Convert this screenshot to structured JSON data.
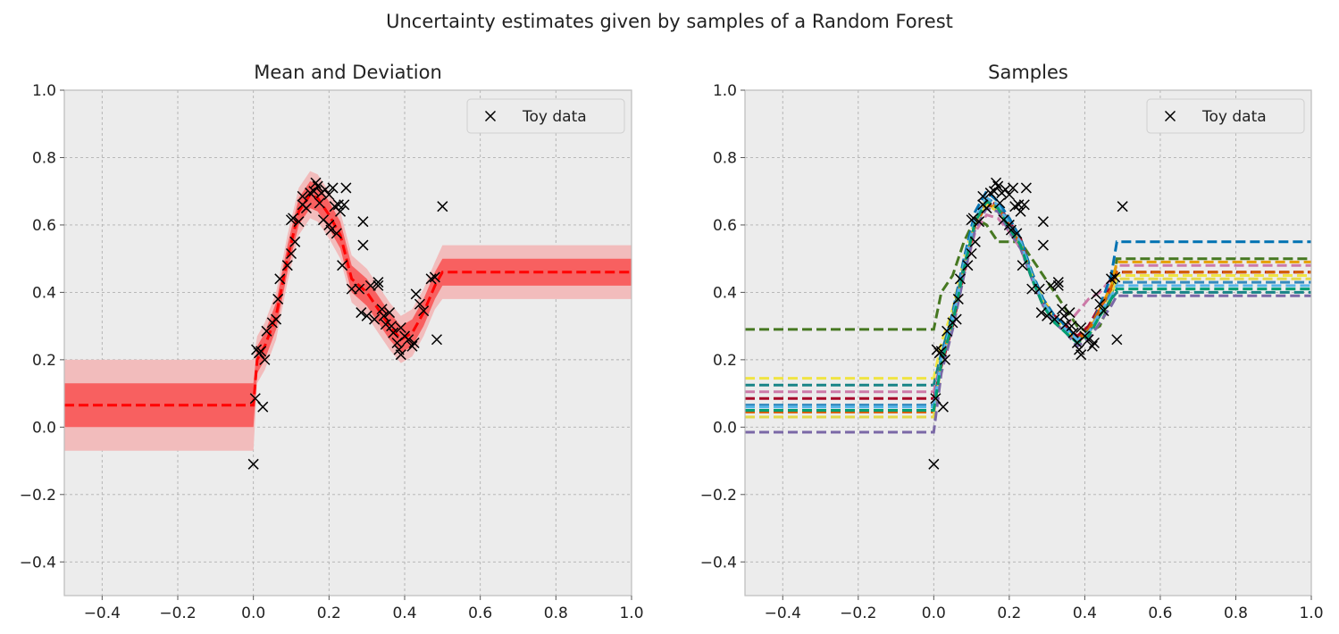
{
  "figure": {
    "suptitle": "Uncertainty estimates given by samples of a Random Forest"
  },
  "chart_data": [
    {
      "type": "line",
      "title": "Mean and Deviation",
      "xlabel": "",
      "ylabel": "",
      "xlim": [
        -0.5,
        1.0
      ],
      "ylim": [
        -0.5,
        1.0
      ],
      "xticks": [
        -0.4,
        -0.2,
        0.0,
        0.2,
        0.4,
        0.6,
        0.8,
        1.0
      ],
      "yticks": [
        -0.4,
        -0.2,
        0.0,
        0.2,
        0.4,
        0.6,
        0.8,
        1.0
      ],
      "xtick_labels": [
        "−0.4",
        "−0.2",
        "0.0",
        "0.2",
        "0.4",
        "0.6",
        "0.8",
        "1.0"
      ],
      "ytick_labels": [
        "−0.4",
        "−0.2",
        "0.0",
        "0.2",
        "0.4",
        "0.6",
        "0.8",
        "1.0"
      ],
      "grid": true,
      "legend": {
        "position": "upper-right",
        "entries": [
          "Toy data"
        ]
      },
      "mean": {
        "x": [
          -0.5,
          0.0,
          0.01,
          0.03,
          0.06,
          0.09,
          0.12,
          0.15,
          0.17,
          0.2,
          0.23,
          0.26,
          0.3,
          0.33,
          0.36,
          0.39,
          0.42,
          0.45,
          0.48,
          0.5,
          1.0
        ],
        "y": [
          0.065,
          0.065,
          0.2,
          0.24,
          0.33,
          0.5,
          0.64,
          0.69,
          0.68,
          0.63,
          0.57,
          0.44,
          0.4,
          0.35,
          0.3,
          0.26,
          0.28,
          0.34,
          0.42,
          0.46,
          0.46
        ]
      },
      "band_1sd": {
        "lower_offset": [
          0.065,
          0.065,
          0.04,
          0.04,
          0.04,
          0.04,
          0.04,
          0.04,
          0.04,
          0.04,
          0.04,
          0.04,
          0.04,
          0.04,
          0.04,
          0.04,
          0.04,
          0.04,
          0.04,
          0.04,
          0.04
        ],
        "color": "#f86060"
      },
      "band_2sd": {
        "lower_offset": [
          0.135,
          0.135,
          0.07,
          0.07,
          0.07,
          0.07,
          0.07,
          0.07,
          0.07,
          0.07,
          0.07,
          0.07,
          0.07,
          0.07,
          0.07,
          0.07,
          0.07,
          0.07,
          0.07,
          0.08,
          0.08
        ],
        "color": "#f2bcbc"
      },
      "toy_data": [
        [
          0.0,
          -0.11
        ],
        [
          0.005,
          0.085
        ],
        [
          0.008,
          0.23
        ],
        [
          0.015,
          0.22
        ],
        [
          0.02,
          0.225
        ],
        [
          0.025,
          0.06
        ],
        [
          0.03,
          0.2
        ],
        [
          0.035,
          0.285
        ],
        [
          0.05,
          0.31
        ],
        [
          0.06,
          0.32
        ],
        [
          0.065,
          0.38
        ],
        [
          0.07,
          0.44
        ],
        [
          0.09,
          0.48
        ],
        [
          0.1,
          0.515
        ],
        [
          0.1,
          0.615
        ],
        [
          0.105,
          0.62
        ],
        [
          0.11,
          0.55
        ],
        [
          0.12,
          0.61
        ],
        [
          0.13,
          0.66
        ],
        [
          0.13,
          0.685
        ],
        [
          0.14,
          0.65
        ],
        [
          0.15,
          0.695
        ],
        [
          0.16,
          0.7
        ],
        [
          0.165,
          0.725
        ],
        [
          0.17,
          0.715
        ],
        [
          0.175,
          0.665
        ],
        [
          0.18,
          0.695
        ],
        [
          0.185,
          0.615
        ],
        [
          0.19,
          0.705
        ],
        [
          0.2,
          0.6
        ],
        [
          0.2,
          0.69
        ],
        [
          0.205,
          0.585
        ],
        [
          0.21,
          0.71
        ],
        [
          0.215,
          0.655
        ],
        [
          0.22,
          0.575
        ],
        [
          0.225,
          0.66
        ],
        [
          0.23,
          0.64
        ],
        [
          0.235,
          0.48
        ],
        [
          0.24,
          0.66
        ],
        [
          0.245,
          0.71
        ],
        [
          0.26,
          0.41
        ],
        [
          0.28,
          0.41
        ],
        [
          0.285,
          0.34
        ],
        [
          0.29,
          0.61
        ],
        [
          0.29,
          0.54
        ],
        [
          0.3,
          0.33
        ],
        [
          0.31,
          0.42
        ],
        [
          0.32,
          0.32
        ],
        [
          0.33,
          0.42
        ],
        [
          0.33,
          0.43
        ],
        [
          0.34,
          0.35
        ],
        [
          0.345,
          0.33
        ],
        [
          0.35,
          0.305
        ],
        [
          0.36,
          0.34
        ],
        [
          0.365,
          0.3
        ],
        [
          0.37,
          0.28
        ],
        [
          0.38,
          0.25
        ],
        [
          0.385,
          0.23
        ],
        [
          0.39,
          0.215
        ],
        [
          0.39,
          0.295
        ],
        [
          0.4,
          0.27
        ],
        [
          0.41,
          0.26
        ],
        [
          0.42,
          0.24
        ],
        [
          0.425,
          0.25
        ],
        [
          0.43,
          0.395
        ],
        [
          0.44,
          0.365
        ],
        [
          0.45,
          0.345
        ],
        [
          0.47,
          0.44
        ],
        [
          0.48,
          0.445
        ],
        [
          0.485,
          0.26
        ],
        [
          0.5,
          0.655
        ]
      ]
    },
    {
      "type": "line",
      "title": "Samples",
      "xlabel": "",
      "ylabel": "",
      "xlim": [
        -0.5,
        1.0
      ],
      "ylim": [
        -0.5,
        1.0
      ],
      "xticks": [
        -0.4,
        -0.2,
        0.0,
        0.2,
        0.4,
        0.6,
        0.8,
        1.0
      ],
      "yticks": [
        -0.4,
        -0.2,
        0.0,
        0.2,
        0.4,
        0.6,
        0.8,
        1.0
      ],
      "xtick_labels": [
        "−0.4",
        "−0.2",
        "0.0",
        "0.2",
        "0.4",
        "0.6",
        "0.8",
        "1.0"
      ],
      "ytick_labels": [
        "−0.4",
        "−0.2",
        "0.0",
        "0.2",
        "0.4",
        "0.6",
        "0.8",
        "1.0"
      ],
      "grid": true,
      "legend": {
        "position": "upper-right",
        "entries": [
          "Toy data"
        ]
      },
      "shared_x": [
        0.0,
        0.02,
        0.05,
        0.08,
        0.11,
        0.14,
        0.17,
        0.2,
        0.23,
        0.26,
        0.29,
        0.32,
        0.35,
        0.38,
        0.41,
        0.44,
        0.47,
        0.485
      ],
      "series": [
        {
          "color": "#467821",
          "left": 0.29,
          "right": 0.5,
          "mid": [
            0.29,
            0.4,
            0.45,
            0.55,
            0.62,
            0.6,
            0.55,
            0.55,
            0.55,
            0.5,
            0.45,
            0.4,
            0.35,
            0.3,
            0.28,
            0.3,
            0.38,
            0.5
          ]
        },
        {
          "color": "#f0e442",
          "left": 0.145,
          "right": 0.45,
          "mid": [
            0.145,
            0.25,
            0.35,
            0.5,
            0.62,
            0.68,
            0.66,
            0.6,
            0.55,
            0.45,
            0.38,
            0.33,
            0.3,
            0.27,
            0.3,
            0.35,
            0.4,
            0.45
          ]
        },
        {
          "color": "#188487",
          "left": 0.125,
          "right": 0.4,
          "mid": [
            0.125,
            0.22,
            0.33,
            0.48,
            0.6,
            0.66,
            0.65,
            0.62,
            0.56,
            0.46,
            0.37,
            0.32,
            0.29,
            0.26,
            0.28,
            0.33,
            0.38,
            0.4
          ]
        },
        {
          "color": "#cc79a7",
          "left": 0.105,
          "right": 0.48,
          "mid": [
            0.105,
            0.2,
            0.3,
            0.45,
            0.58,
            0.63,
            0.62,
            0.58,
            0.53,
            0.44,
            0.36,
            0.32,
            0.3,
            0.34,
            0.38,
            0.4,
            0.44,
            0.48
          ]
        },
        {
          "color": "#a60628",
          "left": 0.085,
          "right": 0.46,
          "mid": [
            0.085,
            0.18,
            0.3,
            0.46,
            0.6,
            0.67,
            0.66,
            0.61,
            0.56,
            0.45,
            0.37,
            0.33,
            0.3,
            0.27,
            0.3,
            0.36,
            0.42,
            0.46
          ]
        },
        {
          "color": "#0072b2",
          "left": 0.065,
          "right": 0.55,
          "mid": [
            0.065,
            0.21,
            0.34,
            0.5,
            0.64,
            0.7,
            0.67,
            0.62,
            0.56,
            0.46,
            0.38,
            0.33,
            0.3,
            0.26,
            0.28,
            0.36,
            0.45,
            0.55
          ]
        },
        {
          "color": "#348abd",
          "left": 0.065,
          "right": 0.43,
          "mid": [
            0.065,
            0.2,
            0.33,
            0.49,
            0.62,
            0.68,
            0.66,
            0.61,
            0.55,
            0.45,
            0.37,
            0.32,
            0.29,
            0.25,
            0.28,
            0.34,
            0.4,
            0.43
          ]
        },
        {
          "color": "#e69f00",
          "left": 0.045,
          "right": 0.49,
          "mid": [
            0.045,
            0.19,
            0.32,
            0.47,
            0.61,
            0.67,
            0.65,
            0.6,
            0.55,
            0.45,
            0.37,
            0.32,
            0.29,
            0.25,
            0.28,
            0.35,
            0.42,
            0.49
          ]
        },
        {
          "color": "#d55e00",
          "left": 0.045,
          "right": 0.46,
          "mid": [
            0.045,
            0.19,
            0.31,
            0.47,
            0.6,
            0.66,
            0.65,
            0.6,
            0.54,
            0.44,
            0.36,
            0.31,
            0.28,
            0.26,
            0.29,
            0.35,
            0.41,
            0.46
          ]
        },
        {
          "color": "#e5d94a",
          "left": 0.03,
          "right": 0.44,
          "mid": [
            0.03,
            0.18,
            0.3,
            0.46,
            0.6,
            0.66,
            0.64,
            0.59,
            0.54,
            0.45,
            0.37,
            0.32,
            0.29,
            0.25,
            0.27,
            0.33,
            0.39,
            0.44
          ]
        },
        {
          "color": "#7a68a6",
          "left": -0.015,
          "right": 0.39,
          "mid": [
            -0.015,
            0.16,
            0.29,
            0.45,
            0.59,
            0.65,
            0.64,
            0.58,
            0.53,
            0.44,
            0.36,
            0.31,
            0.28,
            0.24,
            0.26,
            0.31,
            0.36,
            0.39
          ]
        },
        {
          "color": "#56b4e9",
          "left": 0.06,
          "right": 0.42,
          "mid": [
            0.06,
            0.2,
            0.32,
            0.48,
            0.62,
            0.68,
            0.66,
            0.6,
            0.55,
            0.45,
            0.37,
            0.32,
            0.29,
            0.26,
            0.28,
            0.34,
            0.39,
            0.42
          ]
        },
        {
          "color": "#009e73",
          "left": 0.05,
          "right": 0.41,
          "mid": [
            0.05,
            0.19,
            0.31,
            0.47,
            0.61,
            0.67,
            0.65,
            0.59,
            0.54,
            0.44,
            0.36,
            0.31,
            0.28,
            0.25,
            0.27,
            0.33,
            0.38,
            0.41
          ]
        }
      ],
      "toy_data": [
        [
          0.0,
          -0.11
        ],
        [
          0.005,
          0.085
        ],
        [
          0.008,
          0.23
        ],
        [
          0.015,
          0.22
        ],
        [
          0.02,
          0.225
        ],
        [
          0.025,
          0.06
        ],
        [
          0.03,
          0.2
        ],
        [
          0.035,
          0.285
        ],
        [
          0.05,
          0.31
        ],
        [
          0.06,
          0.32
        ],
        [
          0.065,
          0.38
        ],
        [
          0.07,
          0.44
        ],
        [
          0.09,
          0.48
        ],
        [
          0.1,
          0.515
        ],
        [
          0.1,
          0.615
        ],
        [
          0.105,
          0.62
        ],
        [
          0.11,
          0.55
        ],
        [
          0.12,
          0.61
        ],
        [
          0.13,
          0.66
        ],
        [
          0.13,
          0.685
        ],
        [
          0.14,
          0.65
        ],
        [
          0.15,
          0.695
        ],
        [
          0.16,
          0.7
        ],
        [
          0.165,
          0.725
        ],
        [
          0.17,
          0.715
        ],
        [
          0.175,
          0.665
        ],
        [
          0.18,
          0.695
        ],
        [
          0.185,
          0.615
        ],
        [
          0.19,
          0.705
        ],
        [
          0.2,
          0.6
        ],
        [
          0.2,
          0.69
        ],
        [
          0.205,
          0.585
        ],
        [
          0.21,
          0.71
        ],
        [
          0.215,
          0.655
        ],
        [
          0.22,
          0.575
        ],
        [
          0.225,
          0.66
        ],
        [
          0.23,
          0.64
        ],
        [
          0.235,
          0.48
        ],
        [
          0.24,
          0.66
        ],
        [
          0.245,
          0.71
        ],
        [
          0.26,
          0.41
        ],
        [
          0.28,
          0.41
        ],
        [
          0.285,
          0.34
        ],
        [
          0.29,
          0.61
        ],
        [
          0.29,
          0.54
        ],
        [
          0.3,
          0.33
        ],
        [
          0.31,
          0.42
        ],
        [
          0.32,
          0.32
        ],
        [
          0.33,
          0.42
        ],
        [
          0.33,
          0.43
        ],
        [
          0.34,
          0.35
        ],
        [
          0.345,
          0.33
        ],
        [
          0.35,
          0.305
        ],
        [
          0.36,
          0.34
        ],
        [
          0.365,
          0.3
        ],
        [
          0.37,
          0.28
        ],
        [
          0.38,
          0.25
        ],
        [
          0.385,
          0.23
        ],
        [
          0.39,
          0.215
        ],
        [
          0.39,
          0.295
        ],
        [
          0.4,
          0.27
        ],
        [
          0.41,
          0.26
        ],
        [
          0.42,
          0.24
        ],
        [
          0.425,
          0.25
        ],
        [
          0.43,
          0.395
        ],
        [
          0.44,
          0.365
        ],
        [
          0.45,
          0.345
        ],
        [
          0.47,
          0.44
        ],
        [
          0.48,
          0.445
        ],
        [
          0.485,
          0.26
        ],
        [
          0.5,
          0.655
        ]
      ]
    }
  ]
}
